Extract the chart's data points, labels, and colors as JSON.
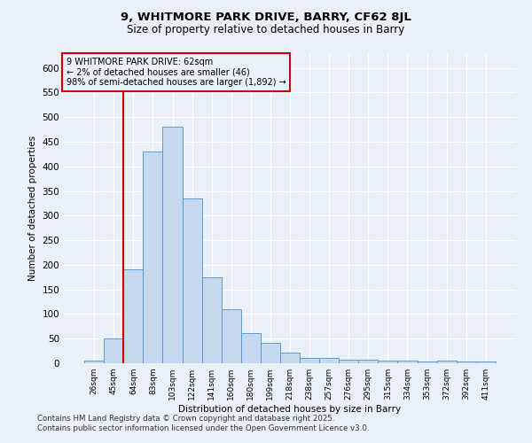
{
  "title1": "9, WHITMORE PARK DRIVE, BARRY, CF62 8JL",
  "title2": "Size of property relative to detached houses in Barry",
  "xlabel": "Distribution of detached houses by size in Barry",
  "ylabel": "Number of detached properties",
  "categories": [
    "26sqm",
    "45sqm",
    "64sqm",
    "83sqm",
    "103sqm",
    "122sqm",
    "141sqm",
    "160sqm",
    "180sqm",
    "199sqm",
    "218sqm",
    "238sqm",
    "257sqm",
    "276sqm",
    "295sqm",
    "315sqm",
    "334sqm",
    "353sqm",
    "372sqm",
    "392sqm",
    "411sqm"
  ],
  "values": [
    5,
    50,
    190,
    430,
    480,
    335,
    175,
    110,
    62,
    42,
    22,
    10,
    10,
    8,
    8,
    5,
    5,
    3,
    5,
    3,
    3
  ],
  "bar_color": "#c5d8ed",
  "bar_edge_color": "#5b9bd5",
  "vline_color": "#cc0000",
  "annotation_title": "9 WHITMORE PARK DRIVE: 62sqm",
  "annotation_line1": "← 2% of detached houses are smaller (46)",
  "annotation_line2": "98% of semi-detached houses are larger (1,892) →",
  "annotation_box_color": "#cc0000",
  "footnote1": "Contains HM Land Registry data © Crown copyright and database right 2025.",
  "footnote2": "Contains public sector information licensed under the Open Government Licence v3.0.",
  "background_color": "#eaf0f8",
  "ylim": [
    0,
    630
  ],
  "yticks": [
    0,
    50,
    100,
    150,
    200,
    250,
    300,
    350,
    400,
    450,
    500,
    550,
    600
  ]
}
